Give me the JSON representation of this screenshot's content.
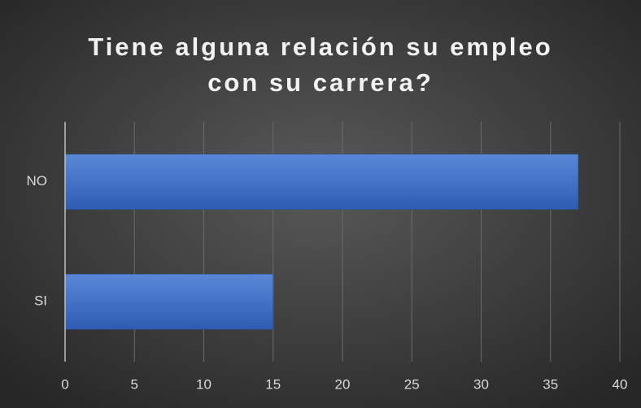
{
  "chart_data": {
    "type": "hbar",
    "title": "Tiene alguna relación su empleo con su carrera?",
    "categories": [
      "SI",
      "NO"
    ],
    "values": [
      15,
      37
    ],
    "color": "#4472c4",
    "xlim": [
      0,
      40
    ],
    "xticks": [
      0,
      5,
      10,
      15,
      20,
      25,
      30,
      35,
      40
    ],
    "grid": true
  }
}
